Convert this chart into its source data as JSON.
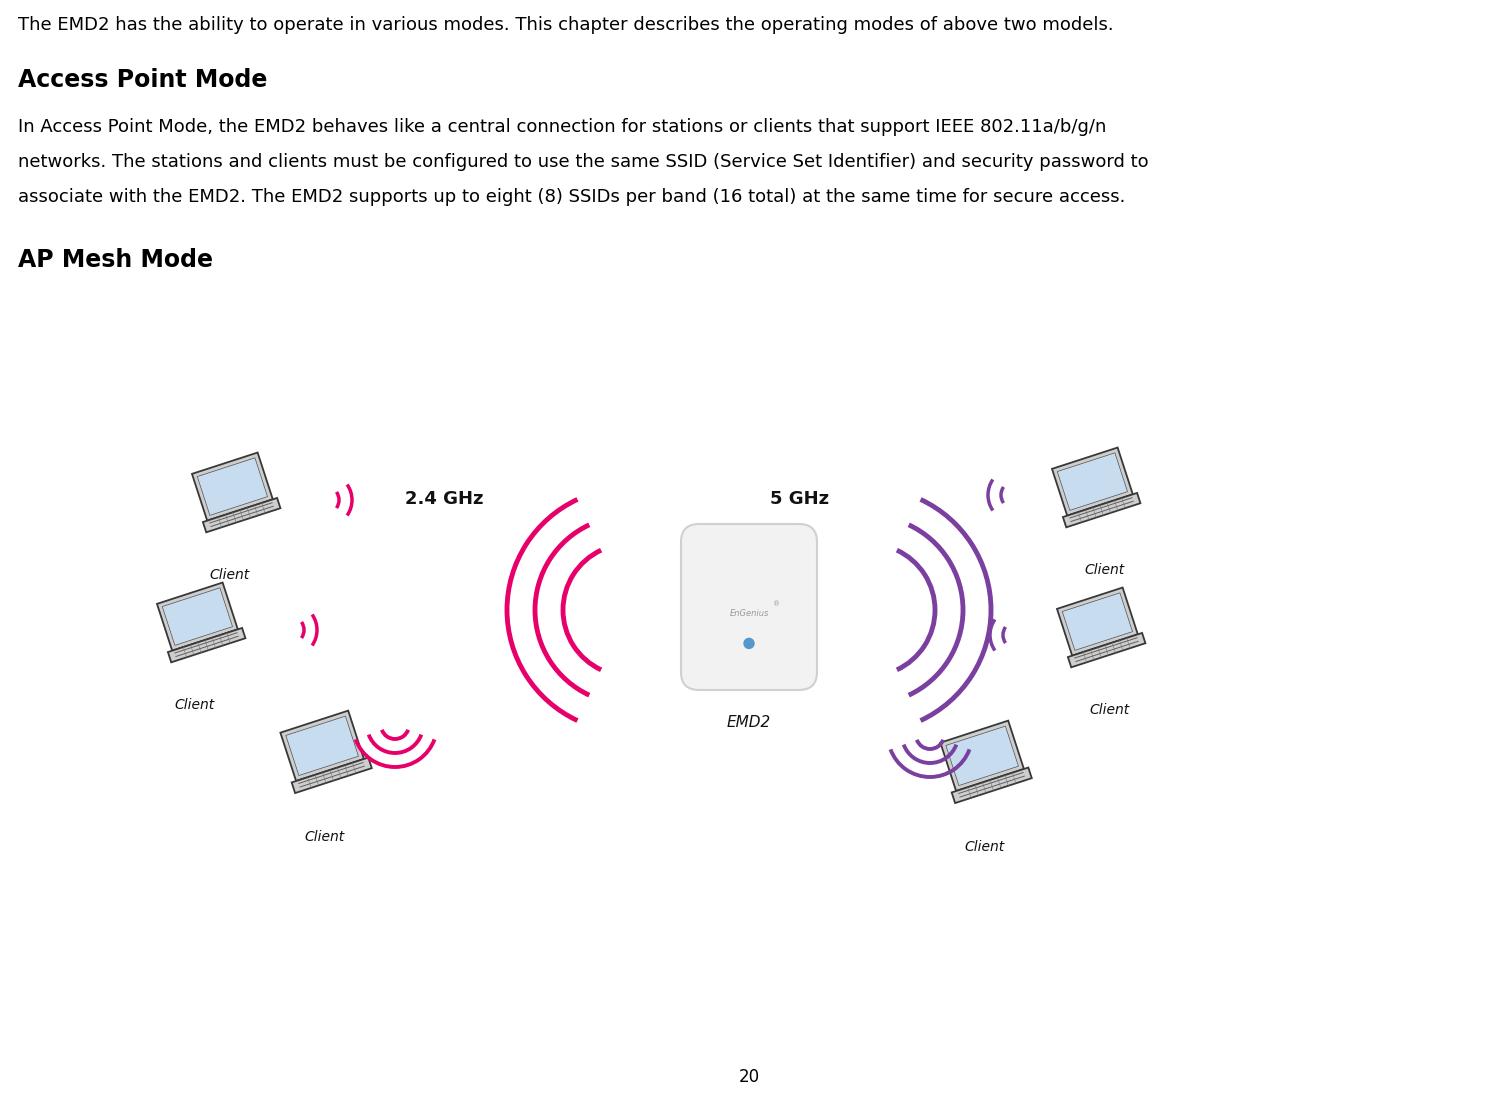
{
  "bg_color": "#ffffff",
  "text_color": "#000000",
  "page_number": "20",
  "intro_text": "The EMD2 has the ability to operate in various modes. This chapter describes the operating modes of above two models.",
  "heading1": "Access Point Mode",
  "body_text1_line1": "In Access Point Mode, the EMD2 behaves like a central connection for stations or clients that support IEEE 802.11a/b/g/n",
  "body_text1_line2": "networks. The stations and clients must be configured to use the same SSID (Service Set Identifier) and security password to",
  "body_text1_line3": "associate with the EMD2. The EMD2 supports up to eight (8) SSIDs per band (16 total) at the same time for secure access.",
  "heading2": "AP Mesh Mode",
  "emd2_label": "EMD2",
  "ghz_24_label": "2.4 GHz",
  "ghz_5_label": "5 GHz",
  "client_label": "Client",
  "pink_color": "#E8006A",
  "purple_color": "#7B3FA0"
}
